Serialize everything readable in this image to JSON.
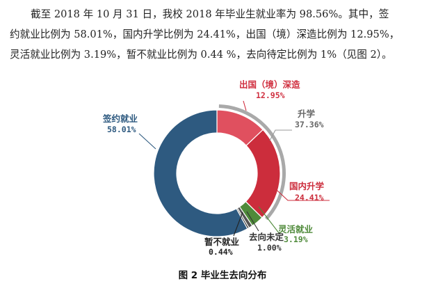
{
  "paragraph": {
    "line1": "截至 2018 年 10 月 31 日，我校 2018 年毕业生就业率为 98.56%。其中，签",
    "line2": "约就业比例为 58.01%，国内升学比例为 24.41%，出国（境）深造比例为 12.95%，",
    "line3": "灵活就业比例为 3.19%，暂不就业比例为 0.44 %，去向待定比例为 1%（见图 2）。"
  },
  "caption": "图 2  毕业生去向分布",
  "chart_data": {
    "type": "pie",
    "variant": "donut",
    "title": "",
    "slices": [
      {
        "name": "出国（境）深造",
        "value_label": "12.95%",
        "value": 12.95,
        "color": "#e0505f"
      },
      {
        "name": "国内升学",
        "value_label": "24.41%",
        "value": 24.41,
        "color": "#cc2d3c"
      },
      {
        "name": "灵活就业",
        "value_label": "3.19%",
        "value": 3.19,
        "color": "#4f8a3a"
      },
      {
        "name": "去向未定",
        "value_label": "1.00%",
        "value": 1.0,
        "color": "#555555"
      },
      {
        "name": "暂不就业",
        "value_label": "0.44%",
        "value": 0.44,
        "color": "#222222"
      },
      {
        "name": "签约就业",
        "value_label": "58.01%",
        "value": 58.01,
        "color": "#2e5a80"
      }
    ],
    "group_arc": {
      "name": "升学",
      "value_label": "37.36%",
      "value": 37.36,
      "color": "#a9a9a9"
    }
  }
}
